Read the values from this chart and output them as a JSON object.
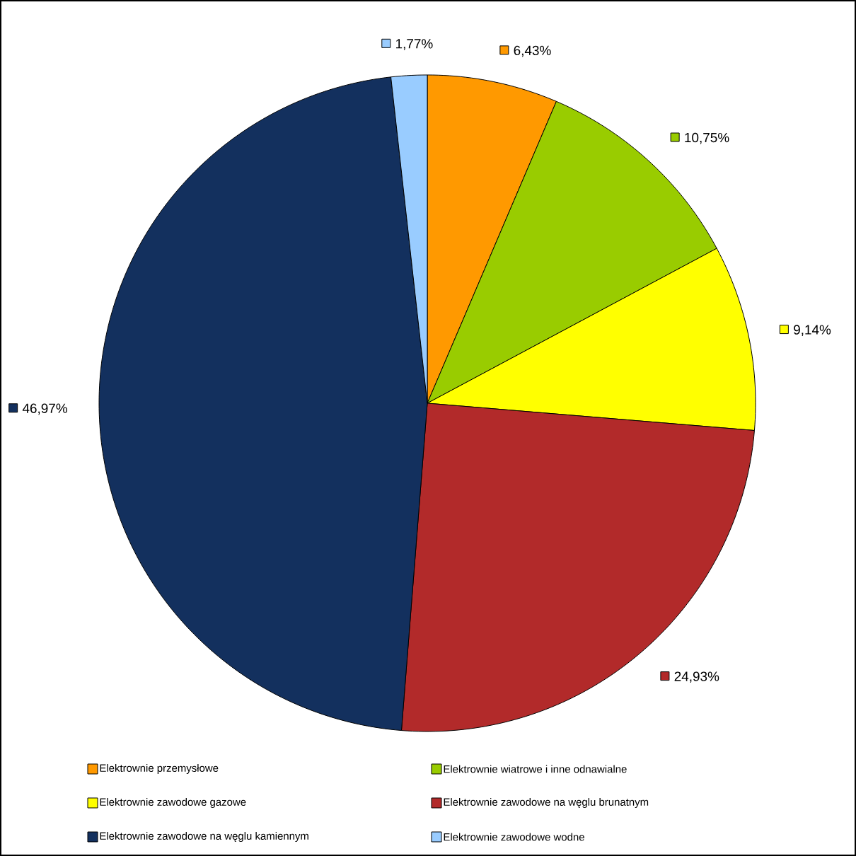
{
  "chart_data": {
    "type": "pie",
    "categories": [
      "Elektrownie przemysłowe",
      "Elektrownie wiatrowe i inne odnawialne",
      "Elektrownie zawodowe gazowe",
      "Elektrownie zawodowe na węglu brunatnym",
      "Elektrownie zawodowe na węglu kamiennym",
      "Elektrownie zawodowe wodne"
    ],
    "values": [
      6.43,
      10.75,
      9.14,
      24.93,
      46.97,
      1.77
    ],
    "value_labels": [
      "6,43%",
      "10,75%",
      "9,14%",
      "24,93%",
      "46,97%",
      "1,77%"
    ],
    "colors": [
      "#ff9900",
      "#99cc00",
      "#ffff00",
      "#b22a2a",
      "#13305e",
      "#99ccff"
    ],
    "legend": "bottom"
  }
}
